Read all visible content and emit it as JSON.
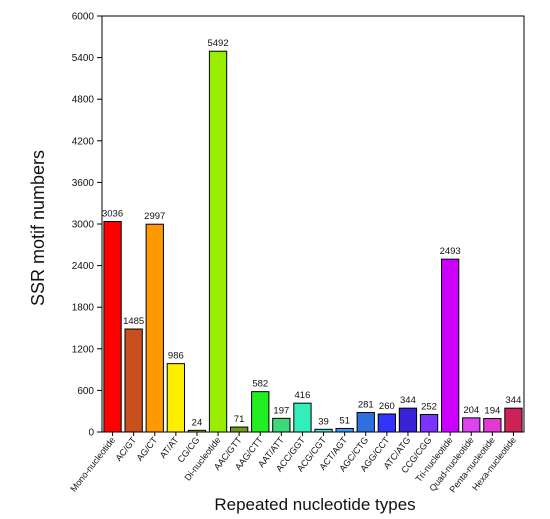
{
  "chart_data": {
    "type": "bar",
    "title": "",
    "xlabel": "Repeated nucleotide types",
    "ylabel": "SSR motif numbers",
    "ylim": [
      0,
      6000
    ],
    "yticks": [
      0,
      600,
      1200,
      1800,
      2400,
      3000,
      3600,
      4200,
      4800,
      5400,
      6000
    ],
    "grid": false,
    "legend": "none",
    "categories": [
      "Mono-nucleotide",
      "AC/GT",
      "AG/CT",
      "AT/AT",
      "CG/CG",
      "Di-nucleotide",
      "AAC/GTT",
      "AAG/CTT",
      "AAT/ATT",
      "ACC/GGT",
      "ACG/CGT",
      "ACT/AGT",
      "AGC/CTG",
      "AGG/CCT",
      "ATC/ATG",
      "CCG/CGG",
      "Tri-nucleotide",
      "Quad-nucleotide",
      "Penta-nucleotide",
      "Hexa-nucleotide"
    ],
    "values": [
      3036,
      1485,
      2997,
      986,
      24,
      5492,
      71,
      582,
      197,
      416,
      39,
      51,
      281,
      260,
      344,
      252,
      2493,
      204,
      194,
      344
    ],
    "value_labels": [
      "3036",
      "1485",
      "2997",
      "986",
      "24",
      "5492",
      "71",
      "582",
      "197",
      "416",
      "39",
      "51",
      "281",
      "260",
      "344",
      "252",
      "2493",
      "204",
      "194",
      "344"
    ],
    "colors": [
      "#ff0000",
      "#c8501e",
      "#ff9900",
      "#ffee00",
      "#b8b800",
      "#99ee00",
      "#6f9d1a",
      "#22ee22",
      "#3cd97a",
      "#33eebb",
      "#4dd9d9",
      "#3399ff",
      "#2f6fe0",
      "#3333ff",
      "#3a22d6",
      "#7d33ff",
      "#cc00ff",
      "#dd44ee",
      "#e23ad2",
      "#cc2255"
    ]
  }
}
